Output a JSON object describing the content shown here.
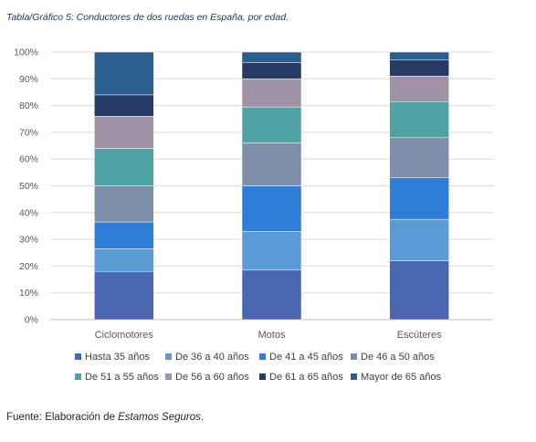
{
  "caption": "Tabla/Gráfico 5: Conductores de dos ruedas en España, por edad.",
  "source": {
    "prefix": "Fuente: Elaboración de ",
    "emphasis": "Estamos Seguros",
    "suffix": "."
  },
  "chart_data": {
    "type": "bar",
    "stacked": true,
    "percent_stacked": true,
    "categories": [
      "Ciclomotores",
      "Motos",
      "Escúteres"
    ],
    "ylim": [
      0,
      100
    ],
    "y_ticks": [
      "0%",
      "10%",
      "20%",
      "30%",
      "40%",
      "50%",
      "60%",
      "70%",
      "80%",
      "90%",
      "100%"
    ],
    "grid": true,
    "legend_position": "bottom",
    "series": [
      {
        "name": "Hasta 35 años",
        "color": "#4a66b0",
        "values": [
          18,
          18.5,
          22
        ]
      },
      {
        "name": "De 36 a 40 años",
        "color": "#5b9bd5",
        "values": [
          8.5,
          14.5,
          15.5
        ]
      },
      {
        "name": "De 41 a 45 años",
        "color": "#2e7dd8",
        "values": [
          10,
          17,
          15.5
        ]
      },
      {
        "name": "De 46 a 50 años",
        "color": "#7f8fab",
        "values": [
          13.5,
          16,
          15
        ]
      },
      {
        "name": "De 51 a 55 años",
        "color": "#4fa3a5",
        "values": [
          14,
          13.5,
          13.5
        ]
      },
      {
        "name": "De 56 a 60 años",
        "color": "#a093a6",
        "values": [
          12,
          10.5,
          9.5
        ]
      },
      {
        "name": "De 61 a 65 años",
        "color": "#263a66",
        "values": [
          8,
          6,
          6
        ]
      },
      {
        "name": "Mayor de 65 años",
        "color": "#2a5f8f",
        "values": [
          16,
          4,
          3
        ]
      }
    ]
  }
}
